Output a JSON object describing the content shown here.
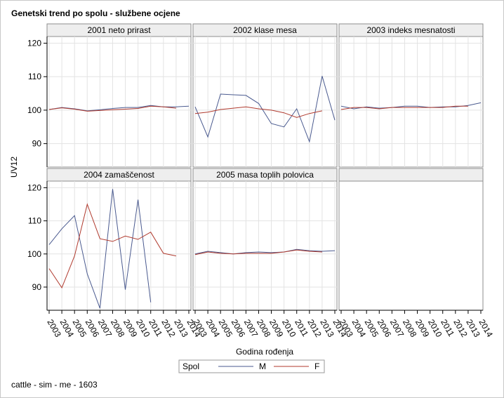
{
  "title": "Genetski trend po spolu - službene ocjene",
  "footnote": "cattle - sim - me - 1603",
  "colors": {
    "M": "#4a5a8f",
    "F": "#b03a2e",
    "panel_border": "#8e8e8e",
    "grid": "#e3e3e3",
    "header_bg": "#eeeeee"
  },
  "chart_data": {
    "type": "line",
    "title": "Genetski trend po spolu - službene ocjene",
    "xlabel": "Godina rođenja",
    "ylabel": "UV12",
    "x": [
      2003,
      2004,
      2005,
      2006,
      2007,
      2008,
      2009,
      2010,
      2011,
      2012,
      2013,
      2014
    ],
    "xlim": [
      2003,
      2014
    ],
    "ylim": [
      83,
      122
    ],
    "yticks": [
      90,
      100,
      110,
      120
    ],
    "grid": true,
    "legend": {
      "title": "Spol",
      "position": "bottom",
      "entries": [
        "M",
        "F"
      ]
    },
    "panels": [
      {
        "label": "2001 neto prirast",
        "series": [
          {
            "name": "M",
            "values": [
              100.2,
              100.8,
              100.4,
              99.8,
              100.1,
              100.5,
              100.8,
              100.8,
              101.4,
              101.0,
              101.0,
              101.2
            ]
          },
          {
            "name": "F",
            "values": [
              100.2,
              100.7,
              100.3,
              99.7,
              99.9,
              100.1,
              100.3,
              100.5,
              101.2,
              101.0,
              100.6,
              null
            ]
          }
        ]
      },
      {
        "label": "2002 klase mesa",
        "series": [
          {
            "name": "M",
            "values": [
              101.0,
              92.0,
              104.8,
              104.6,
              104.4,
              102.0,
              96.0,
              95.0,
              100.4,
              90.6,
              110.2,
              97.0
            ]
          },
          {
            "name": "F",
            "values": [
              99.0,
              99.4,
              100.2,
              100.6,
              101.0,
              100.4,
              100.0,
              99.2,
              97.8,
              99.0,
              99.8,
              null
            ]
          }
        ]
      },
      {
        "label": "2003 indeks mesnatosti",
        "series": [
          {
            "name": "M",
            "values": [
              101.2,
              100.4,
              101.0,
              100.6,
              100.8,
              101.2,
              101.2,
              100.8,
              101.0,
              101.0,
              101.4,
              102.2
            ]
          },
          {
            "name": "F",
            "values": [
              100.2,
              100.8,
              100.8,
              100.4,
              100.8,
              100.8,
              100.8,
              100.8,
              100.8,
              101.2,
              101.2,
              null
            ]
          }
        ]
      },
      {
        "label": "2004 zamaščenost",
        "series": [
          {
            "name": "M",
            "values": [
              102.8,
              107.6,
              111.6,
              94.0,
              83.6,
              119.6,
              89.2,
              116.4,
              85.4,
              null,
              null,
              null
            ]
          },
          {
            "name": "F",
            "values": [
              95.6,
              89.8,
              99.4,
              115.0,
              104.6,
              103.8,
              105.4,
              104.4,
              106.6,
              100.2,
              99.4,
              null
            ]
          }
        ]
      },
      {
        "label": "2005 masa toplih polovica",
        "series": [
          {
            "name": "M",
            "values": [
              100.0,
              100.8,
              100.4,
              100.0,
              100.4,
              100.6,
              100.4,
              100.6,
              101.4,
              101.0,
              100.8,
              101.0
            ]
          },
          {
            "name": "F",
            "values": [
              99.8,
              100.6,
              100.2,
              100.0,
              100.2,
              100.2,
              100.2,
              100.6,
              101.2,
              100.8,
              100.6,
              null
            ]
          }
        ]
      }
    ]
  }
}
